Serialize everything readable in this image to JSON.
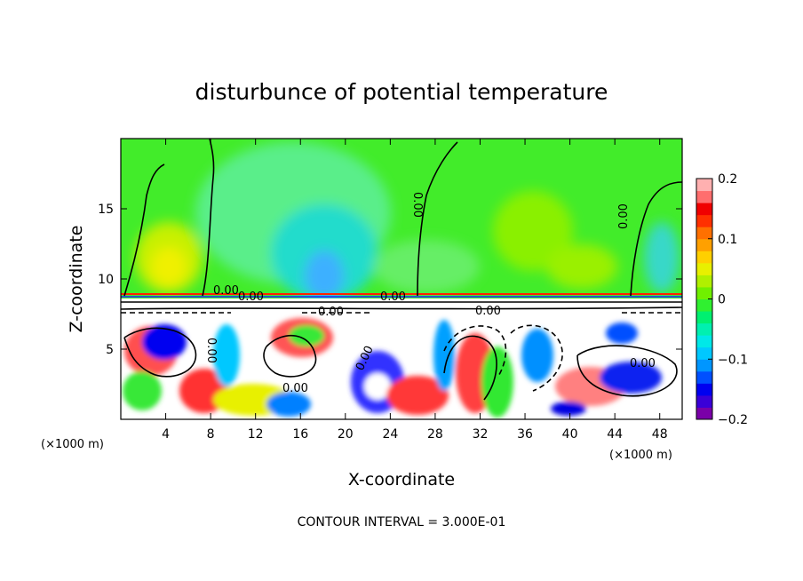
{
  "chart_data": {
    "type": "heatmap",
    "title": "disturbunce of potential temperature",
    "xlabel": "X-coordinate",
    "ylabel": "Z-coordinate",
    "x_unit": "(×1000 m)",
    "x_unit_right": "(×1000 m)",
    "xlim": [
      0,
      50
    ],
    "ylim": [
      0,
      20
    ],
    "x_ticks": [
      4,
      8,
      12,
      16,
      20,
      24,
      28,
      32,
      36,
      40,
      44,
      48
    ],
    "y_ticks": [
      5,
      10,
      15
    ],
    "colorbar": {
      "range": [
        -0.2,
        0.2
      ],
      "ticks": [
        {
          "value": 0.2,
          "label": "0.2"
        },
        {
          "value": 0.1,
          "label": "0.1"
        },
        {
          "value": 0,
          "label": "0"
        },
        {
          "value": -0.1,
          "label": "−0.1"
        },
        {
          "value": -0.2,
          "label": "−0.2"
        }
      ],
      "colors": [
        "#7a00a8",
        "#3a00d8",
        "#0000f0",
        "#0050ff",
        "#0096ff",
        "#00c8ff",
        "#00e8e8",
        "#00f0b0",
        "#00f070",
        "#30f030",
        "#70f000",
        "#b0f000",
        "#e8f000",
        "#ffd000",
        "#ffa000",
        "#ff7000",
        "#ff3000",
        "#f00000",
        "#ff6e6e",
        "#ffb0b0"
      ]
    },
    "contour_labels": [
      "0.00",
      "0.00",
      "0.00",
      "0.00",
      "0.00",
      "0.00",
      "0.00",
      "0.00",
      "0.00",
      "0.00",
      "0.00"
    ],
    "contour_interval_text": "CONTOUR INTERVAL = 3.000E-01"
  }
}
